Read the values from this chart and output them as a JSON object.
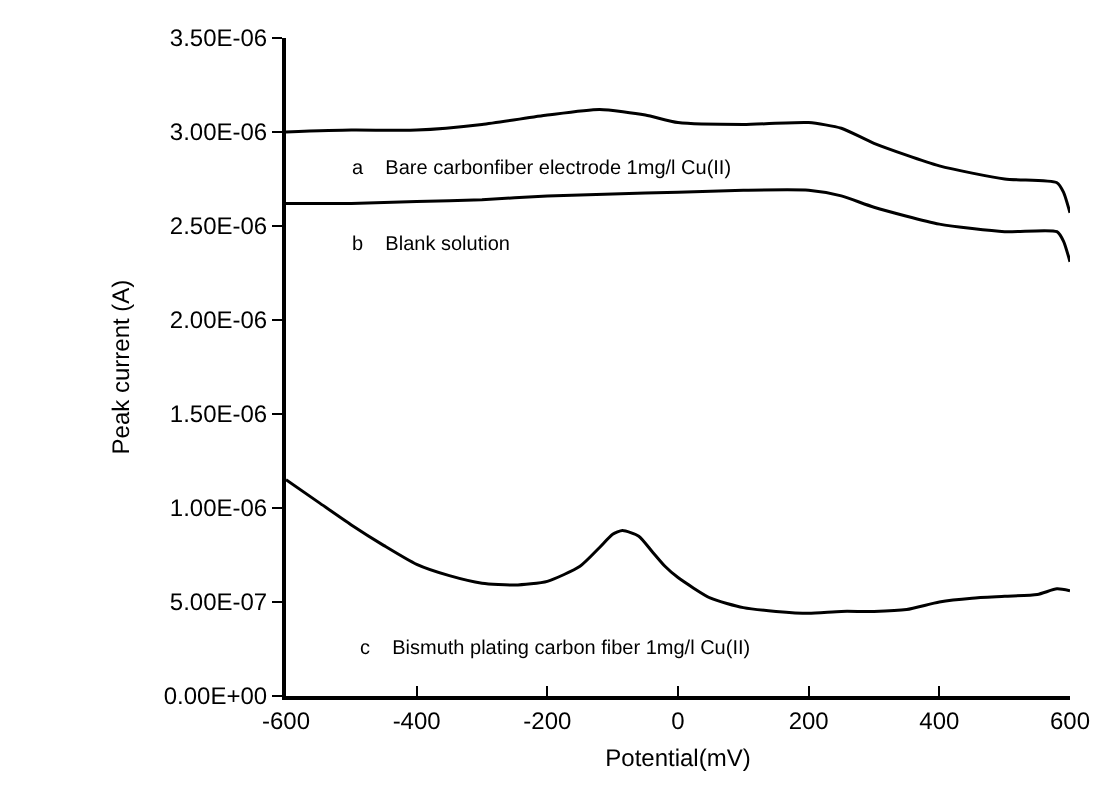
{
  "chart_data": {
    "type": "line",
    "xlabel": "Potential(mV)",
    "ylabel": "Peak current (A)",
    "xlim": [
      -600,
      600
    ],
    "xticks": [
      -600,
      -400,
      -200,
      0,
      200,
      400,
      600
    ],
    "ylim": [
      0,
      3.5e-06
    ],
    "yticks": [
      {
        "value": 0,
        "label": "0.00E+00"
      },
      {
        "value": 5e-07,
        "label": "5.00E-07"
      },
      {
        "value": 1e-06,
        "label": "1.00E-06"
      },
      {
        "value": 1.5e-06,
        "label": "1.50E-06"
      },
      {
        "value": 2e-06,
        "label": "2.00E-06"
      },
      {
        "value": 2.5e-06,
        "label": "2.50E-06"
      },
      {
        "value": 3e-06,
        "label": "3.00E-06"
      },
      {
        "value": 3.5e-06,
        "label": "3.50E-06"
      }
    ],
    "grid": false,
    "marker": "none",
    "line_style": "solid",
    "series": [
      {
        "color": "#000000",
        "x": [
          -600,
          -500,
          -400,
          -300,
          -200,
          -120,
          -50,
          0,
          100,
          200,
          250,
          300,
          400,
          500,
          580,
          590,
          600
        ],
        "values": [
          3e-06,
          3.01e-06,
          3.01e-06,
          3.04e-06,
          3.09e-06,
          3.12e-06,
          3.09e-06,
          3.05e-06,
          3.04e-06,
          3.05e-06,
          3.02e-06,
          2.94e-06,
          2.82e-06,
          2.75e-06,
          2.73e-06,
          2.68e-06,
          2.57e-06
        ]
      },
      {
        "color": "#000000",
        "x": [
          -600,
          -500,
          -400,
          -300,
          -200,
          -100,
          0,
          100,
          200,
          250,
          300,
          400,
          500,
          580,
          590,
          600
        ],
        "values": [
          2.62e-06,
          2.62e-06,
          2.63e-06,
          2.64e-06,
          2.66e-06,
          2.67e-06,
          2.68e-06,
          2.69e-06,
          2.69e-06,
          2.66e-06,
          2.6e-06,
          2.51e-06,
          2.47e-06,
          2.47e-06,
          2.42e-06,
          2.31e-06
        ]
      },
      {
        "color": "#000000",
        "x": [
          -600,
          -550,
          -500,
          -450,
          -400,
          -350,
          -300,
          -250,
          -200,
          -150,
          -120,
          -100,
          -85,
          -60,
          -40,
          -20,
          0,
          50,
          100,
          150,
          200,
          250,
          300,
          350,
          400,
          450,
          500,
          550,
          580,
          600
        ],
        "values": [
          1.15e-06,
          1.03e-06,
          9.1e-07,
          8e-07,
          7e-07,
          6.4e-07,
          6e-07,
          5.9e-07,
          6.1e-07,
          6.9e-07,
          7.9e-07,
          8.6e-07,
          8.8e-07,
          8.5e-07,
          7.7e-07,
          6.9e-07,
          6.3e-07,
          5.2e-07,
          4.7e-07,
          4.5e-07,
          4.4e-07,
          4.5e-07,
          4.5e-07,
          4.6e-07,
          5e-07,
          5.2e-07,
          5.3e-07,
          5.4e-07,
          5.7e-07,
          5.6e-07
        ]
      }
    ],
    "annotations": [
      "a    Bare carbonfiber electrode 1mg/l Cu(II)",
      "b    Blank solution",
      "c    Bismuth plating carbon fiber 1mg/l Cu(II)"
    ]
  }
}
